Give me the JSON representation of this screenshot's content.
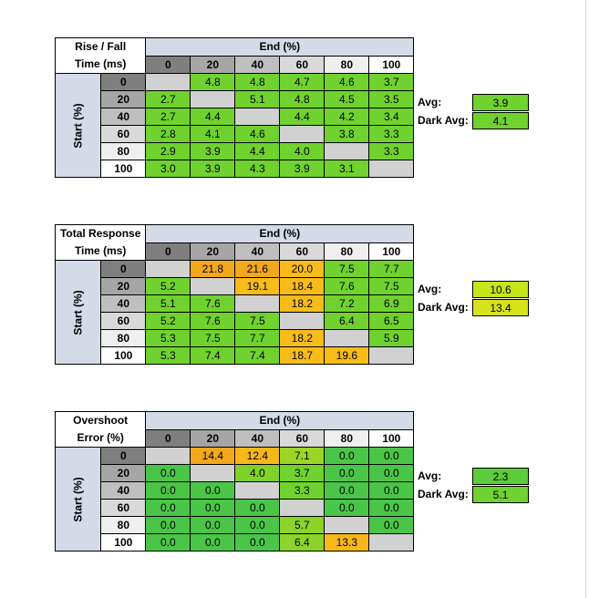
{
  "chart_data": [
    {
      "type": "table",
      "title_lines": [
        "Rise / Fall",
        "Time (ms)"
      ],
      "end_label": "End (%)",
      "start_label": "Start (%)",
      "levels": [
        "0",
        "20",
        "40",
        "60",
        "80",
        "100"
      ],
      "rows": [
        [
          null,
          "4.8",
          "4.8",
          "4.7",
          "4.6",
          "3.7"
        ],
        [
          "2.7",
          null,
          "5.1",
          "4.8",
          "4.5",
          "3.5"
        ],
        [
          "2.7",
          "4.4",
          null,
          "4.4",
          "4.2",
          "3.4"
        ],
        [
          "2.8",
          "4.1",
          "4.6",
          null,
          "3.8",
          "3.3"
        ],
        [
          "2.9",
          "3.9",
          "4.4",
          "4.0",
          null,
          "3.3"
        ],
        [
          "3.0",
          "3.9",
          "4.3",
          "3.9",
          "3.1",
          null
        ]
      ],
      "cell_colors": [
        [
          null,
          "#6fd22e",
          "#6fd22e",
          "#6fd22e",
          "#6fd22e",
          "#6fd22e"
        ],
        [
          "#6fd22e",
          null,
          "#6fd22e",
          "#6fd22e",
          "#6fd22e",
          "#6fd22e"
        ],
        [
          "#6fd22e",
          "#6fd22e",
          null,
          "#6fd22e",
          "#6fd22e",
          "#6fd22e"
        ],
        [
          "#6fd22e",
          "#6fd22e",
          "#6fd22e",
          null,
          "#6fd22e",
          "#6fd22e"
        ],
        [
          "#6fd22e",
          "#6fd22e",
          "#6fd22e",
          "#6fd22e",
          null,
          "#6fd22e"
        ],
        [
          "#6fd22e",
          "#6fd22e",
          "#6fd22e",
          "#6fd22e",
          "#6fd22e",
          null
        ]
      ],
      "avg_label": "Avg:",
      "avg_value": "3.9",
      "avg_color": "#6fd22e",
      "dark_avg_label": "Dark Avg:",
      "dark_avg_value": "4.1",
      "dark_avg_color": "#6fd22e"
    },
    {
      "type": "table",
      "title_lines": [
        "Total Response",
        "Time (ms)"
      ],
      "end_label": "End (%)",
      "start_label": "Start (%)",
      "levels": [
        "0",
        "20",
        "40",
        "60",
        "80",
        "100"
      ],
      "rows": [
        [
          null,
          "21.8",
          "21.6",
          "20.0",
          "7.5",
          "7.7"
        ],
        [
          "5.2",
          null,
          "19.1",
          "18.4",
          "7.6",
          "7.5"
        ],
        [
          "5.1",
          "7.6",
          null,
          "18.2",
          "7.2",
          "6.9"
        ],
        [
          "5.2",
          "7.6",
          "7.5",
          null,
          "6.4",
          "6.5"
        ],
        [
          "5.3",
          "7.5",
          "7.7",
          "18.2",
          null,
          "5.9"
        ],
        [
          "5.3",
          "7.4",
          "7.4",
          "18.7",
          "19.6",
          null
        ]
      ],
      "cell_colors": [
        [
          null,
          "#f2a81c",
          "#f2a81c",
          "#f7bc1a",
          "#6fd22e",
          "#6fd22e"
        ],
        [
          "#6fd22e",
          null,
          "#f7bc1a",
          "#f7bc1a",
          "#6fd22e",
          "#6fd22e"
        ],
        [
          "#6fd22e",
          "#6fd22e",
          null,
          "#f7bc1a",
          "#6fd22e",
          "#6fd22e"
        ],
        [
          "#6fd22e",
          "#6fd22e",
          "#6fd22e",
          null,
          "#6fd22e",
          "#6fd22e"
        ],
        [
          "#6fd22e",
          "#6fd22e",
          "#6fd22e",
          "#f7bc1a",
          null,
          "#6fd22e"
        ],
        [
          "#6fd22e",
          "#6fd22e",
          "#6fd22e",
          "#f7bc1a",
          "#f7bc1a",
          null
        ]
      ],
      "avg_label": "Avg:",
      "avg_value": "10.6",
      "avg_color": "#c6e619",
      "dark_avg_label": "Dark Avg:",
      "dark_avg_value": "13.4",
      "dark_avg_color": "#d6e21a"
    },
    {
      "type": "table",
      "title_lines": [
        "Overshoot",
        "Error (%)"
      ],
      "end_label": "End (%)",
      "start_label": "Start (%)",
      "levels": [
        "0",
        "20",
        "40",
        "60",
        "80",
        "100"
      ],
      "rows": [
        [
          null,
          "14.4",
          "12.4",
          "7.1",
          "0.0",
          "0.0"
        ],
        [
          "0.0",
          null,
          "4.0",
          "3.7",
          "0.0",
          "0.0"
        ],
        [
          "0.0",
          "0.0",
          null,
          "3.3",
          "0.0",
          "0.0"
        ],
        [
          "0.0",
          "0.0",
          "0.0",
          null,
          "0.0",
          "0.0"
        ],
        [
          "0.0",
          "0.0",
          "0.0",
          "5.7",
          null,
          "0.0"
        ],
        [
          "0.0",
          "0.0",
          "0.0",
          "6.4",
          "13.3",
          null
        ]
      ],
      "cell_colors": [
        [
          null,
          "#f2a81c",
          "#f7b71b",
          "#9bd527",
          "#4bc548",
          "#4bc548"
        ],
        [
          "#4bc548",
          null,
          "#7ed32a",
          "#6fd22e",
          "#4bc548",
          "#4bc548"
        ],
        [
          "#4bc548",
          "#4bc548",
          null,
          "#6fd22e",
          "#4bc548",
          "#4bc548"
        ],
        [
          "#4bc548",
          "#4bc548",
          "#4bc548",
          null,
          "#4bc548",
          "#4bc548"
        ],
        [
          "#4bc548",
          "#4bc548",
          "#4bc548",
          "#8cd32a",
          null,
          "#4bc548"
        ],
        [
          "#4bc548",
          "#4bc548",
          "#4bc548",
          "#8cd32a",
          "#f7b71b",
          null
        ]
      ],
      "avg_label": "Avg:",
      "avg_value": "2.3",
      "avg_color": "#5ccb3c",
      "dark_avg_label": "Dark Avg:",
      "dark_avg_value": "5.1",
      "dark_avg_color": "#6fd22e"
    }
  ],
  "colors": {
    "header_blue": "#d4dae6",
    "diagonal": "#d1d1d1",
    "col_header_shades": [
      "#7f7f7f",
      "#a6a6a6",
      "#bfbfbf",
      "#d9d9d9",
      "#efefef",
      "#ffffff"
    ]
  }
}
